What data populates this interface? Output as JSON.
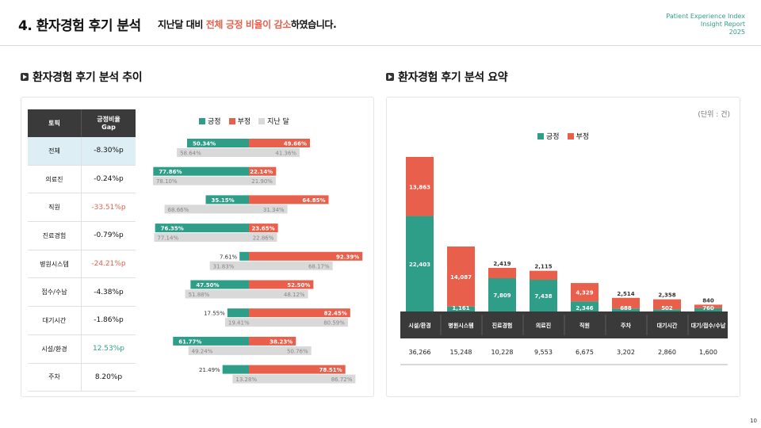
{
  "header": {
    "title": "4. 환자경험 후기 분석",
    "sub_pre": "지난달 대비",
    "sub_hl": "전체 긍정 비율이 감소",
    "sub_post": "하였습니다.",
    "brand_line1": "Patient Experience Index",
    "brand_line2": "Insight Report",
    "brand_line3": "2025"
  },
  "left": {
    "section_title": "환자경험 후기 분석 추이",
    "table_head_topic": "토픽",
    "table_head_gap_1": "긍정비율",
    "table_head_gap_2": "Gap",
    "legend": [
      "긍정",
      "부정",
      "지난 달"
    ]
  },
  "right": {
    "section_title": "환자경험 후기 분석 요약",
    "unit": "(단위 : 건)",
    "legend": [
      "긍정",
      "부정"
    ]
  },
  "colors": {
    "positive": "#2e9e88",
    "negative": "#e8604c",
    "last": "#d9d9d9",
    "header": "#3a3a3a"
  },
  "page_number": "10",
  "chart_data": [
    {
      "type": "bar",
      "subtype": "diverging-stacked-100",
      "title": "환자경험 후기 분석 추이",
      "categories": [
        "전체",
        "의료진",
        "직원",
        "진료경험",
        "병원시스템",
        "접수/수납",
        "대기시간",
        "시설/환경",
        "주차"
      ],
      "gap": [
        "-8.30%p",
        "-0.24%p",
        "-33.51%p",
        "-0.79%p",
        "-24.21%p",
        "-4.38%p",
        "-1.86%p",
        "12.53%p",
        "8.20%p"
      ],
      "series": [
        {
          "name": "긍정",
          "values": [
            50.34,
            77.86,
            35.15,
            76.35,
            7.61,
            47.5,
            17.55,
            61.77,
            21.49
          ],
          "labels": [
            "50.34%",
            "77.86%",
            "35.15%",
            "76.35%",
            "7.61%",
            "47.50%",
            "17.55%",
            "61.77%",
            "21.49%"
          ]
        },
        {
          "name": "부정",
          "values": [
            49.66,
            22.14,
            64.85,
            23.65,
            92.39,
            52.5,
            82.45,
            38.23,
            78.51
          ],
          "labels": [
            "49.66%",
            "22.14%",
            "64.85%",
            "23.65%",
            "92.39%",
            "52.50%",
            "82.45%",
            "38.23%",
            "78.51%"
          ]
        },
        {
          "name": "지난 달 긍정",
          "values": [
            58.64,
            78.1,
            68.66,
            77.14,
            31.83,
            51.88,
            19.41,
            49.24,
            13.28
          ],
          "labels": [
            "58.64%",
            "78.10%",
            "68.66%",
            "77.14%",
            "31.83%",
            "51.88%",
            "19.41%",
            "49.24%",
            "13.28%"
          ]
        },
        {
          "name": "지난 달 부정",
          "values": [
            41.36,
            21.9,
            31.34,
            22.86,
            68.17,
            48.12,
            80.59,
            50.76,
            86.72
          ],
          "labels": [
            "41.36%",
            "21.90%",
            "31.34%",
            "22.86%",
            "68.17%",
            "48.12%",
            "80.59%",
            "50.76%",
            "86.72%"
          ]
        }
      ]
    },
    {
      "type": "bar",
      "subtype": "stacked",
      "title": "환자경험 후기 분석 요약",
      "categories": [
        "시설/환경",
        "병원시스템",
        "진료경험",
        "의료진",
        "직원",
        "주차",
        "대기시간",
        "대기/접수/수납"
      ],
      "series": [
        {
          "name": "긍정",
          "values": [
            22403,
            1161,
            7809,
            7438,
            2346,
            688,
            502,
            760
          ],
          "labels": [
            "22,403",
            "1,161",
            "7,809",
            "7,438",
            "2,346",
            "688",
            "502",
            "760"
          ]
        },
        {
          "name": "부정",
          "values": [
            13863,
            14087,
            2419,
            2115,
            4329,
            2514,
            2358,
            840
          ],
          "labels": [
            "13,863",
            "14,087",
            "2,419",
            "2,115",
            "4,329",
            "2,514",
            "2,358",
            "840"
          ]
        }
      ],
      "totals": [
        "36,266",
        "15,248",
        "10,228",
        "9,553",
        "6,675",
        "3,202",
        "2,860",
        "1,600"
      ]
    }
  ]
}
